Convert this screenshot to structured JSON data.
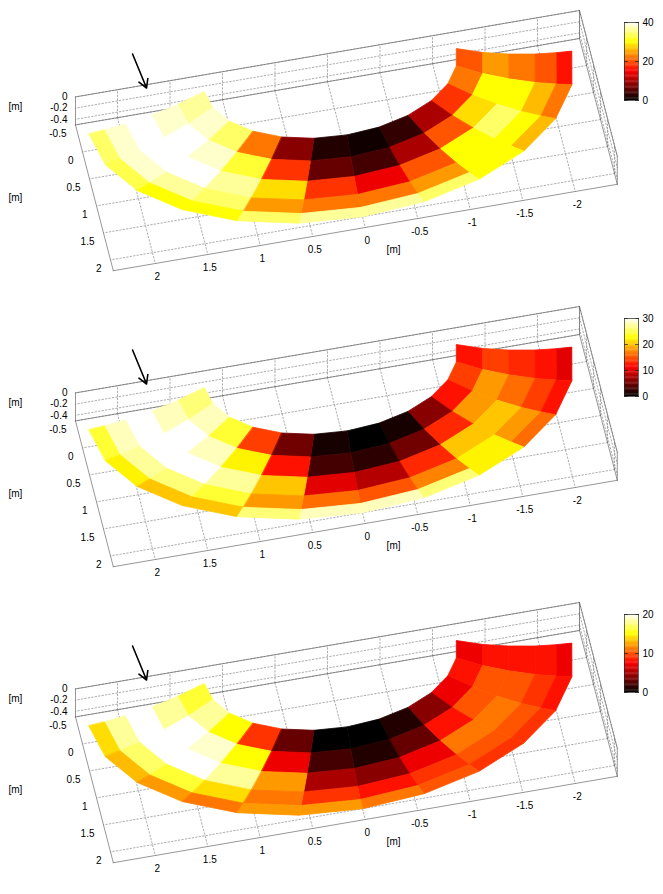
{
  "chart_data": [
    {
      "type": "surface3d",
      "xlabel": "[m]",
      "ylabel": "[m]",
      "zlabel": "[m]",
      "xlim": [
        -2.4,
        2.4
      ],
      "xticks": [
        -2,
        -1.5,
        -1,
        -0.5,
        0,
        0.5,
        1,
        1.5,
        2
      ],
      "ylim": [
        -0.5,
        2.2
      ],
      "yticks": [
        -0.5,
        0,
        0.5,
        1,
        1.5,
        2
      ],
      "zlim": [
        -0.5,
        0
      ],
      "zticks": [
        -0.4,
        -0.2,
        0
      ],
      "grid": true,
      "colorbar": {
        "range": [
          0,
          40
        ],
        "ticks": [
          0,
          20,
          40
        ]
      },
      "surface": {
        "center": [
          0,
          -0.3
        ],
        "theta": [
          0,
          15,
          30,
          45,
          60,
          75,
          90,
          105,
          120,
          135,
          150,
          165,
          180
        ],
        "r": [
          1.2,
          1.45,
          1.7,
          1.95,
          2.15,
          2.3
        ],
        "z": [
          -0.1,
          -0.25,
          -0.36,
          -0.44,
          -0.48,
          -0.5
        ],
        "values": [
          [
            36,
            38,
            40,
            38,
            34
          ],
          [
            38,
            40,
            40,
            38,
            33
          ],
          [
            34,
            38,
            40,
            36,
            30
          ],
          [
            22,
            32,
            36,
            34,
            30
          ],
          [
            8,
            18,
            28,
            24,
            34
          ],
          [
            2,
            6,
            18,
            22,
            36
          ],
          [
            1,
            4,
            14,
            22,
            36
          ],
          [
            3,
            10,
            20,
            24,
            34
          ],
          [
            10,
            20,
            30,
            30,
            30
          ],
          [
            18,
            28,
            34,
            30,
            26
          ],
          [
            22,
            30,
            30,
            26,
            22
          ],
          [
            20,
            24,
            22,
            20,
            16
          ]
        ]
      }
    },
    {
      "type": "surface3d",
      "xlabel": "[m]",
      "ylabel": "[m]",
      "zlabel": "[m]",
      "xlim": [
        -2.4,
        2.4
      ],
      "xticks": [
        -2,
        -1.5,
        -1,
        -0.5,
        0,
        0.5,
        1,
        1.5,
        2
      ],
      "ylim": [
        -0.5,
        2.2
      ],
      "yticks": [
        -0.5,
        0,
        0.5,
        1,
        1.5,
        2
      ],
      "zlim": [
        -0.5,
        0
      ],
      "zticks": [
        -0.4,
        -0.2,
        0
      ],
      "grid": true,
      "colorbar": {
        "range": [
          0,
          30
        ],
        "ticks": [
          0,
          10,
          20,
          30
        ]
      },
      "surface": {
        "center": [
          0,
          -0.3
        ],
        "theta": [
          0,
          15,
          30,
          45,
          60,
          75,
          90,
          105,
          120,
          135,
          150,
          165,
          180
        ],
        "r": [
          1.2,
          1.45,
          1.7,
          1.95,
          2.15,
          2.3
        ],
        "z": [
          -0.1,
          -0.25,
          -0.36,
          -0.44,
          -0.48,
          -0.5
        ],
        "values": [
          [
            26,
            28,
            30,
            28,
            24
          ],
          [
            28,
            30,
            30,
            27,
            22
          ],
          [
            24,
            28,
            30,
            26,
            20
          ],
          [
            14,
            22,
            27,
            24,
            20
          ],
          [
            5,
            12,
            20,
            18,
            26
          ],
          [
            1,
            3,
            10,
            16,
            28
          ],
          [
            0,
            2,
            8,
            15,
            28
          ],
          [
            1,
            5,
            13,
            17,
            26
          ],
          [
            6,
            13,
            20,
            22,
            22
          ],
          [
            12,
            18,
            20,
            18,
            16
          ],
          [
            14,
            18,
            16,
            14,
            12
          ],
          [
            12,
            14,
            13,
            12,
            10
          ]
        ]
      }
    },
    {
      "type": "surface3d",
      "xlabel": "[m]",
      "ylabel": "[m]",
      "zlabel": "[m]",
      "xlim": [
        -2.4,
        2.4
      ],
      "xticks": [
        -2,
        -1.5,
        -1,
        -0.5,
        0,
        0.5,
        1,
        1.5,
        2
      ],
      "ylim": [
        -0.5,
        2.2
      ],
      "yticks": [
        -0.5,
        0,
        0.5,
        1,
        1.5,
        2
      ],
      "zlim": [
        -0.5,
        0
      ],
      "zticks": [
        -0.4,
        -0.2,
        0
      ],
      "grid": true,
      "colorbar": {
        "range": [
          0,
          20
        ],
        "ticks": [
          0,
          10,
          20
        ]
      },
      "surface": {
        "center": [
          0,
          -0.3
        ],
        "theta": [
          0,
          15,
          30,
          45,
          60,
          75,
          90,
          105,
          120,
          135,
          150,
          165,
          180
        ],
        "r": [
          1.2,
          1.45,
          1.7,
          1.95,
          2.15,
          2.3
        ],
        "z": [
          -0.1,
          -0.25,
          -0.36,
          -0.44,
          -0.48,
          -0.5
        ],
        "values": [
          [
            16,
            18,
            20,
            18,
            14
          ],
          [
            18,
            20,
            20,
            17,
            13
          ],
          [
            15,
            19,
            20,
            16,
            12
          ],
          [
            9,
            15,
            18,
            14,
            11
          ],
          [
            3,
            7,
            12,
            11,
            12
          ],
          [
            0,
            2,
            5,
            9,
            12
          ],
          [
            0,
            1,
            4,
            8,
            11
          ],
          [
            1,
            3,
            7,
            9,
            10
          ],
          [
            4,
            8,
            11,
            10,
            9
          ],
          [
            7,
            10,
            11,
            10,
            9
          ],
          [
            8,
            10,
            10,
            9,
            8
          ],
          [
            7,
            8,
            8,
            8,
            7
          ]
        ]
      }
    }
  ]
}
